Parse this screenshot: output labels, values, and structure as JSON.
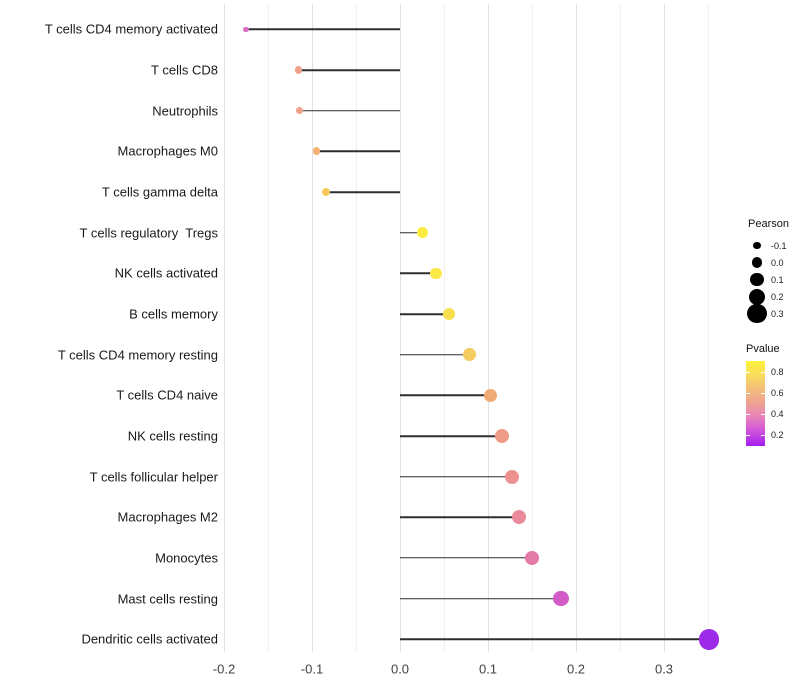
{
  "chart_data": {
    "type": "lollipop",
    "title": "",
    "xlabel": "",
    "ylabel": "",
    "xlim": [
      -0.203,
      0.377
    ],
    "grid": "vertical-only",
    "x_major_ticks": [
      {
        "value": -0.2,
        "label": "-0.2"
      },
      {
        "value": -0.1,
        "label": "-0.1"
      },
      {
        "value": 0.0,
        "label": "0.0"
      },
      {
        "value": 0.1,
        "label": "0.1"
      },
      {
        "value": 0.2,
        "label": "0.2"
      },
      {
        "value": 0.3,
        "label": "0.3"
      }
    ],
    "x_minor_ticks": [
      -0.15,
      -0.05,
      0.05,
      0.15,
      0.25,
      0.35
    ],
    "rows": [
      {
        "label": "T cells CD4 memory activated",
        "pearson": -0.175,
        "pvalue": 0.3,
        "color": "#dc6ec4"
      },
      {
        "label": "T cells CD8",
        "pearson": -0.115,
        "pvalue": 0.55,
        "color": "#efa189"
      },
      {
        "label": "Neutrophils",
        "pearson": -0.114,
        "pvalue": 0.55,
        "color": "#efa189"
      },
      {
        "label": "Macrophages M0",
        "pearson": -0.095,
        "pvalue": 0.65,
        "color": "#f3b172"
      },
      {
        "label": "T cells gamma delta",
        "pearson": -0.084,
        "pvalue": 0.72,
        "color": "#f6c95f"
      },
      {
        "label": "T cells regulatory  Tregs",
        "pearson": 0.026,
        "pvalue": 0.88,
        "color": "#fbec3f"
      },
      {
        "label": "NK cells activated",
        "pearson": 0.041,
        "pvalue": 0.86,
        "color": "#fae845"
      },
      {
        "label": "B cells memory",
        "pearson": 0.056,
        "pvalue": 0.8,
        "color": "#f8de4e"
      },
      {
        "label": "T cells CD4 memory resting",
        "pearson": 0.079,
        "pvalue": 0.72,
        "color": "#f5cc61"
      },
      {
        "label": "T cells CD4 naive",
        "pearson": 0.103,
        "pvalue": 0.6,
        "color": "#f1ac75"
      },
      {
        "label": "NK cells resting",
        "pearson": 0.116,
        "pvalue": 0.55,
        "color": "#ef9d86"
      },
      {
        "label": "T cells follicular helper",
        "pearson": 0.127,
        "pvalue": 0.5,
        "color": "#ed9090"
      },
      {
        "label": "Macrophages M2",
        "pearson": 0.135,
        "pvalue": 0.47,
        "color": "#ea8a9b"
      },
      {
        "label": "Monocytes",
        "pearson": 0.15,
        "pvalue": 0.4,
        "color": "#e47ba6"
      },
      {
        "label": "Mast cells resting",
        "pearson": 0.183,
        "pvalue": 0.3,
        "color": "#d15cc6"
      },
      {
        "label": "Dendritic cells activated",
        "pearson": 0.351,
        "pvalue": 0.12,
        "color": "#9b2be8"
      }
    ],
    "legend_size": {
      "title": "Pearson",
      "entries": [
        {
          "label": "-0.1",
          "value": -0.1
        },
        {
          "label": "0.0",
          "value": 0.0
        },
        {
          "label": "0.1",
          "value": 0.1
        },
        {
          "label": "0.2",
          "value": 0.2
        },
        {
          "label": "0.3",
          "value": 0.3
        }
      ],
      "dot_color": "#000000"
    },
    "legend_color": {
      "title": "Pvalue",
      "tick_labels": [
        "0.8",
        "0.6",
        "0.4",
        "0.2"
      ],
      "gradient_top_to_bottom": [
        "#fcf33a",
        "#f8dc5d",
        "#f3bd7c",
        "#eea194",
        "#e781bc",
        "#cd50dc",
        "#a21ef0"
      ]
    }
  }
}
